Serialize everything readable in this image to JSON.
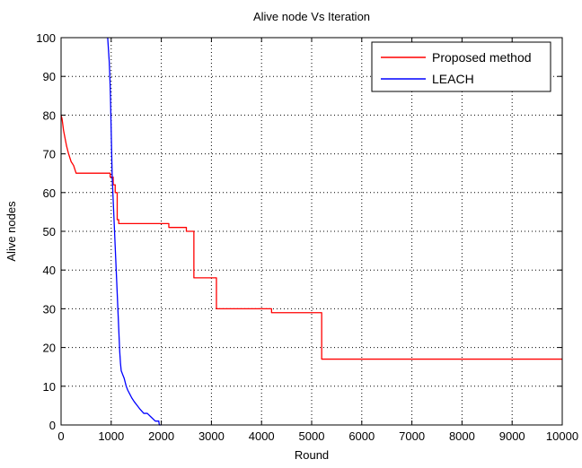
{
  "chart_data": {
    "type": "line",
    "title": "Alive node Vs Iteration",
    "xlabel": "Round",
    "ylabel": "Alive nodes",
    "xlim": [
      0,
      10000
    ],
    "ylim": [
      0,
      100
    ],
    "xticks": [
      0,
      1000,
      2000,
      3000,
      4000,
      5000,
      6000,
      7000,
      8000,
      9000,
      10000
    ],
    "yticks": [
      0,
      10,
      20,
      30,
      40,
      50,
      60,
      70,
      80,
      90,
      100
    ],
    "grid": true,
    "legend_position": "top-right",
    "series": [
      {
        "name": "Proposed method",
        "color": "#ff0000",
        "points": [
          [
            0,
            80
          ],
          [
            20,
            79
          ],
          [
            50,
            76
          ],
          [
            80,
            74
          ],
          [
            110,
            72
          ],
          [
            150,
            70
          ],
          [
            200,
            68
          ],
          [
            250,
            67
          ],
          [
            300,
            65
          ],
          [
            980,
            65
          ],
          [
            980,
            64
          ],
          [
            1040,
            64
          ],
          [
            1040,
            62
          ],
          [
            1080,
            62
          ],
          [
            1080,
            60
          ],
          [
            1120,
            60
          ],
          [
            1120,
            53
          ],
          [
            1150,
            53
          ],
          [
            1150,
            52
          ],
          [
            2150,
            52
          ],
          [
            2150,
            51
          ],
          [
            2500,
            51
          ],
          [
            2500,
            50
          ],
          [
            2650,
            50
          ],
          [
            2650,
            38
          ],
          [
            3100,
            38
          ],
          [
            3100,
            30
          ],
          [
            4200,
            30
          ],
          [
            4200,
            29
          ],
          [
            5200,
            29
          ],
          [
            5200,
            17
          ],
          [
            10000,
            17
          ]
        ]
      },
      {
        "name": "LEACH",
        "color": "#0000ff",
        "points": [
          [
            930,
            100
          ],
          [
            945,
            97
          ],
          [
            960,
            94
          ],
          [
            970,
            91
          ],
          [
            978,
            88
          ],
          [
            985,
            85
          ],
          [
            990,
            82
          ],
          [
            995,
            79
          ],
          [
            1000,
            76
          ],
          [
            1005,
            73
          ],
          [
            1010,
            70
          ],
          [
            1015,
            67
          ],
          [
            1020,
            64
          ],
          [
            1030,
            61
          ],
          [
            1040,
            58
          ],
          [
            1050,
            55
          ],
          [
            1060,
            52
          ],
          [
            1070,
            49
          ],
          [
            1080,
            46
          ],
          [
            1090,
            43
          ],
          [
            1100,
            40
          ],
          [
            1110,
            37
          ],
          [
            1120,
            34
          ],
          [
            1130,
            31
          ],
          [
            1140,
            28
          ],
          [
            1150,
            25
          ],
          [
            1160,
            22
          ],
          [
            1170,
            19
          ],
          [
            1185,
            16
          ],
          [
            1200,
            14
          ],
          [
            1230,
            13
          ],
          [
            1260,
            12
          ],
          [
            1300,
            10
          ],
          [
            1330,
            9
          ],
          [
            1370,
            8
          ],
          [
            1410,
            7
          ],
          [
            1460,
            6
          ],
          [
            1520,
            5
          ],
          [
            1580,
            4
          ],
          [
            1650,
            3
          ],
          [
            1720,
            3
          ],
          [
            1800,
            2
          ],
          [
            1880,
            1
          ],
          [
            1950,
            1
          ],
          [
            1960,
            0
          ],
          [
            2000,
            0
          ]
        ]
      }
    ]
  }
}
